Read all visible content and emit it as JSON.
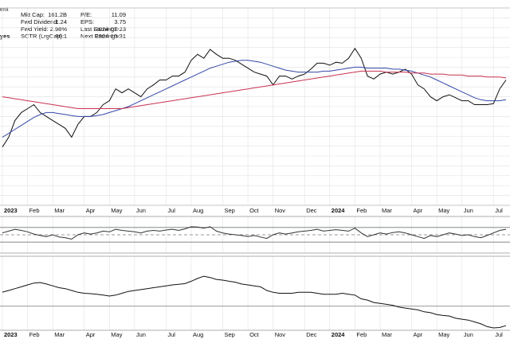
{
  "header": {
    "name_fragment": "ent",
    "exchange_fragment": "yes",
    "fundamentals_left": [
      {
        "label": "Mkt Cap:",
        "value": "161.2B"
      },
      {
        "label": "Fwd Dividend:",
        "value": "1.24"
      },
      {
        "label": "Fwd Yield:",
        "value": "2.98%"
      },
      {
        "label": "SCTR (LrgCap):",
        "value": "36.1"
      }
    ],
    "fundamentals_right": [
      {
        "label": "P/E:",
        "value": "11.09"
      },
      {
        "label": "EPS:",
        "value": "3.75"
      },
      {
        "label": "Last Earnings:",
        "value": "2024-07-23"
      },
      {
        "label": "Next Earnings:",
        "value": "2024-10-31"
      }
    ]
  },
  "chart_data": [
    {
      "type": "line",
      "panel": "price",
      "categories": [
        "2023",
        null,
        null,
        null,
        "Feb",
        null,
        null,
        null,
        "Mar",
        null,
        null,
        null,
        null,
        "Apr",
        null,
        null,
        null,
        "May",
        null,
        null,
        null,
        "Jun",
        null,
        null,
        null,
        null,
        "Jul",
        null,
        null,
        null,
        "Aug",
        null,
        null,
        null,
        null,
        "Sep",
        null,
        null,
        null,
        "Oct",
        null,
        null,
        null,
        "Nov",
        null,
        null,
        null,
        null,
        "Dec",
        null,
        null,
        null,
        "2024",
        null,
        null,
        null,
        "Feb",
        null,
        null,
        null,
        "Mar",
        null,
        null,
        null,
        null,
        "Apr",
        null,
        null,
        null,
        "May",
        null,
        null,
        null,
        "Jun",
        null,
        null,
        null,
        null,
        "Jul",
        null,
        null
      ],
      "ylim": [
        29,
        49
      ],
      "ygrid": [
        29,
        30,
        31,
        32,
        33,
        34,
        35,
        36,
        37,
        38,
        39,
        40,
        41,
        42,
        43,
        44,
        45,
        46,
        47,
        48,
        49
      ],
      "series": [
        {
          "color": "#111111",
          "values": [
            34.9,
            35.9,
            37.6,
            38.4,
            38.8,
            39.2,
            38.4,
            38.0,
            37.6,
            37.2,
            36.8,
            35.9,
            37.2,
            38.0,
            38.0,
            38.4,
            39.2,
            39.6,
            40.8,
            40.4,
            40.8,
            40.4,
            40.0,
            40.8,
            41.2,
            41.7,
            41.7,
            42.1,
            42.1,
            42.5,
            43.7,
            44.3,
            43.9,
            44.8,
            44.3,
            43.9,
            43.9,
            43.7,
            43.3,
            42.9,
            42.5,
            42.3,
            42.1,
            41.2,
            42.1,
            42.1,
            41.8,
            42.1,
            42.3,
            42.8,
            43.4,
            43.4,
            43.2,
            43.5,
            43.4,
            43.9,
            44.9,
            43.9,
            42.1,
            41.8,
            42.3,
            42.5,
            42.3,
            42.5,
            42.8,
            42.3,
            41.2,
            40.8,
            40.0,
            39.6,
            40.0,
            40.2,
            39.9,
            39.6,
            39.6,
            39.2,
            39.2,
            39.2,
            39.3,
            40.8,
            41.7
          ]
        },
        {
          "color": "#3347a8",
          "values": [
            35.9,
            36.3,
            36.7,
            37.1,
            37.5,
            37.9,
            38.2,
            38.4,
            38.4,
            38.3,
            38.2,
            38.1,
            38.0,
            38.0,
            38.0,
            38.1,
            38.2,
            38.4,
            38.6,
            38.8,
            39.0,
            39.3,
            39.6,
            39.9,
            40.2,
            40.5,
            40.8,
            41.1,
            41.4,
            41.7,
            42.0,
            42.3,
            42.6,
            42.9,
            43.1,
            43.3,
            43.5,
            43.6,
            43.7,
            43.7,
            43.6,
            43.5,
            43.3,
            43.1,
            42.9,
            42.7,
            42.6,
            42.5,
            42.5,
            42.5,
            42.5,
            42.6,
            42.6,
            42.7,
            42.8,
            42.9,
            43.0,
            43.0,
            42.9,
            42.9,
            42.9,
            42.9,
            42.8,
            42.8,
            42.7,
            42.6,
            42.4,
            42.2,
            42.0,
            41.7,
            41.4,
            41.1,
            40.8,
            40.5,
            40.2,
            39.9,
            39.7,
            39.6,
            39.6,
            39.6,
            39.7
          ]
        },
        {
          "color": "#c8324f",
          "values": [
            40.0,
            39.9,
            39.8,
            39.7,
            39.6,
            39.5,
            39.4,
            39.3,
            39.2,
            39.1,
            39.0,
            38.9,
            38.8,
            38.8,
            38.8,
            38.8,
            38.8,
            38.8,
            38.8,
            38.8,
            38.9,
            39.0,
            39.1,
            39.2,
            39.3,
            39.4,
            39.5,
            39.6,
            39.7,
            39.8,
            39.9,
            40.0,
            40.1,
            40.2,
            40.3,
            40.4,
            40.5,
            40.6,
            40.7,
            40.8,
            40.9,
            41.0,
            41.1,
            41.2,
            41.3,
            41.4,
            41.5,
            41.6,
            41.7,
            41.8,
            41.9,
            42.0,
            42.1,
            42.2,
            42.3,
            42.4,
            42.5,
            42.6,
            42.6,
            42.6,
            42.6,
            42.5,
            42.5,
            42.5,
            42.5,
            42.4,
            42.4,
            42.4,
            42.3,
            42.3,
            42.3,
            42.2,
            42.2,
            42.2,
            42.1,
            42.1,
            42.1,
            42.0,
            42.0,
            42.0,
            41.9
          ]
        }
      ]
    },
    {
      "type": "line",
      "panel": "oscillator",
      "ylim": [
        0,
        100
      ],
      "reference_lines": [
        30,
        50,
        70
      ],
      "overbought_color": "#3a8a3a",
      "color": "#333333",
      "values": [
        55,
        60,
        65,
        62,
        58,
        52,
        48,
        45,
        50,
        44,
        42,
        38,
        50,
        55,
        52,
        55,
        60,
        58,
        65,
        62,
        60,
        58,
        55,
        60,
        62,
        60,
        63,
        65,
        62,
        66,
        72,
        71,
        68,
        72,
        60,
        55,
        52,
        50,
        48,
        45,
        48,
        44,
        40,
        50,
        55,
        52,
        55,
        58,
        60,
        62,
        65,
        60,
        62,
        64,
        62,
        60,
        68,
        55,
        45,
        50,
        55,
        52,
        56,
        58,
        55,
        50,
        45,
        40,
        48,
        45,
        50,
        55,
        52,
        48,
        50,
        45,
        42,
        48,
        55,
        62,
        65
      ]
    },
    {
      "type": "line",
      "panel": "relative",
      "ylim": [
        60,
        100
      ],
      "reference_lines": [
        73
      ],
      "color": "#111111",
      "values": [
        80.6,
        81.5,
        82.5,
        83.5,
        84.5,
        85.5,
        85.8,
        85.0,
        84.0,
        83.0,
        82.5,
        81.5,
        80.5,
        80.0,
        79.8,
        79.5,
        79.0,
        78.5,
        79.0,
        80.0,
        81.0,
        81.5,
        82.0,
        82.5,
        83.0,
        83.5,
        84.0,
        84.5,
        84.8,
        85.2,
        86.5,
        88.0,
        89.2,
        88.5,
        87.5,
        87.1,
        86.5,
        86.0,
        85.0,
        84.5,
        84.0,
        83.5,
        81.5,
        80.5,
        80.0,
        80.0,
        80.0,
        80.5,
        80.5,
        80.5,
        80.0,
        79.5,
        79.5,
        79.5,
        80.0,
        79.5,
        79.0,
        77.0,
        76.3,
        75.0,
        74.5,
        74.0,
        73.5,
        72.5,
        72.0,
        71.5,
        71.0,
        70.0,
        69.5,
        68.5,
        68.0,
        67.7,
        66.5,
        66.0,
        65.5,
        64.5,
        63.5,
        62.0,
        61.3,
        61.5,
        62.5
      ]
    }
  ]
}
